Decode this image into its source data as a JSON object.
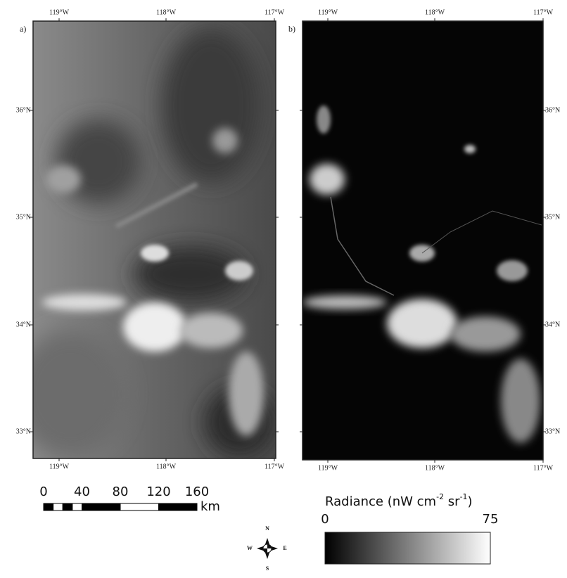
{
  "map": {
    "panels": [
      {
        "label": "a)",
        "lon_ticks": [
          "119°W",
          "118°W",
          "117°W"
        ],
        "lat_ticks": [
          "36°N",
          "35°N",
          "34°N",
          "33°N"
        ]
      },
      {
        "label": "b)",
        "lon_ticks": [
          "119°W",
          "118°W",
          "117°W"
        ],
        "lat_ticks": [
          "36°N",
          "35°N",
          "34°N",
          "33°N"
        ]
      }
    ],
    "scale_bar": {
      "ticks": [
        0,
        40,
        80,
        120,
        160
      ],
      "unit": "km"
    },
    "compass": {
      "north": "N",
      "south": "S",
      "east": "E",
      "west": "W"
    },
    "colorbar": {
      "title_parts": [
        "Radiance (nW cm",
        "-2",
        " sr",
        "-1",
        ")"
      ],
      "min": 0,
      "max": 75
    }
  }
}
